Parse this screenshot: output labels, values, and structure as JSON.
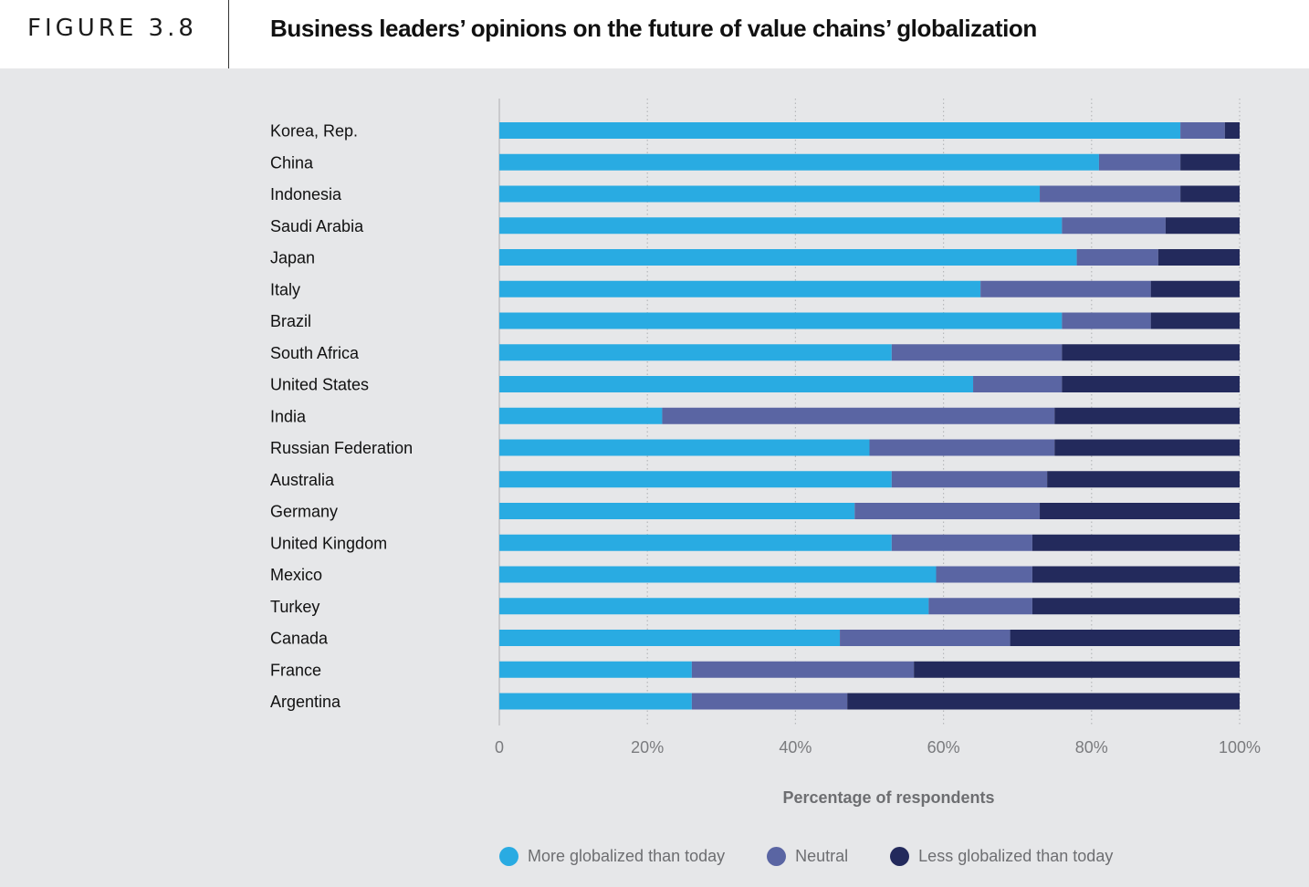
{
  "header": {
    "figure_label": "FIGURE 3.8",
    "title": "Business leaders’ opinions on the future of value chains’ globalization"
  },
  "colors": {
    "more": "#29abe2",
    "neutral": "#5a65a3",
    "less": "#232a5c",
    "panel_background": "#e6e7e9",
    "grid": "#b7b8bb",
    "label_text": "#111111",
    "tick_text": "#7a7b7e"
  },
  "chart_data": {
    "type": "bar",
    "orientation": "horizontal",
    "stacked": true,
    "categories": [
      "Korea, Rep.",
      "China",
      "Indonesia",
      "Saudi Arabia",
      "Japan",
      "Italy",
      "Brazil",
      "South Africa",
      "United States",
      "India",
      "Russian Federation",
      "Australia",
      "Germany",
      "United Kingdom",
      "Mexico",
      "Turkey",
      "Canada",
      "France",
      "Argentina"
    ],
    "series": [
      {
        "name": "More globalized than today",
        "color": "#29abe2",
        "values": [
          92,
          81,
          73,
          76,
          78,
          65,
          76,
          53,
          64,
          22,
          50,
          53,
          48,
          53,
          59,
          58,
          46,
          26,
          26
        ]
      },
      {
        "name": "Neutral",
        "color": "#5a65a3",
        "values": [
          6,
          11,
          19,
          14,
          11,
          23,
          12,
          23,
          12,
          53,
          25,
          21,
          25,
          19,
          13,
          14,
          23,
          30,
          21
        ]
      },
      {
        "name": "Less globalized than today",
        "color": "#232a5c",
        "values": [
          2,
          8,
          8,
          10,
          11,
          12,
          12,
          24,
          24,
          25,
          25,
          26,
          27,
          28,
          28,
          28,
          31,
          44,
          53
        ]
      }
    ],
    "xlabel": "Percentage of respondents",
    "xlim": [
      0,
      100
    ],
    "xticks": [
      0,
      20,
      40,
      60,
      80,
      100
    ],
    "xtick_labels": [
      "0",
      "20%",
      "40%",
      "60%",
      "80%",
      "100%"
    ],
    "grid": "vertical dotted",
    "legend_position": "bottom"
  }
}
